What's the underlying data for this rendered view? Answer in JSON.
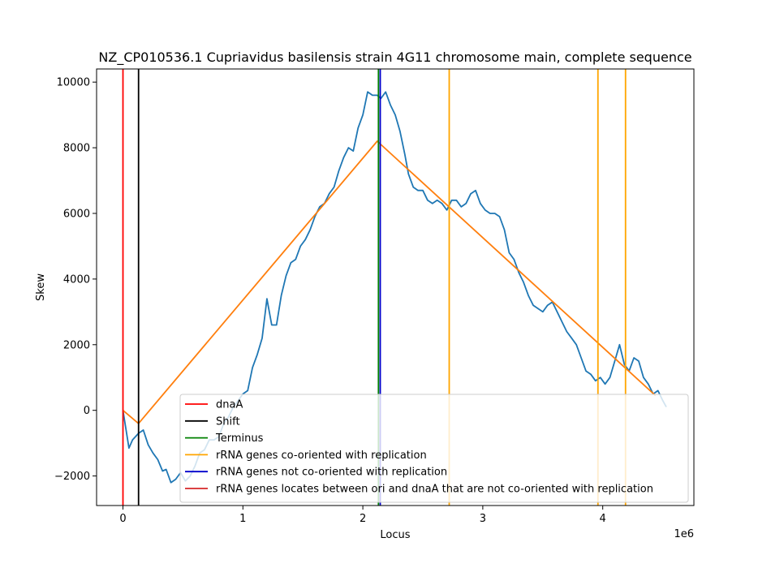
{
  "chart_data": {
    "type": "line",
    "title": "NZ_CP010536.1 Cupriavidus basilensis strain 4G11 chromosome main, complete sequence",
    "xlabel": "Locus",
    "ylabel": "Skew",
    "x_offset_label": "1e6",
    "xlim": [
      -220000,
      4760000
    ],
    "ylim": [
      -2900,
      10400
    ],
    "x_ticks": [
      0,
      1000000,
      2000000,
      3000000,
      4000000
    ],
    "x_tick_labels": [
      "0",
      "1",
      "2",
      "3",
      "4"
    ],
    "y_ticks": [
      -2000,
      0,
      2000,
      4000,
      6000,
      8000,
      10000
    ],
    "y_tick_labels": [
      "−2000",
      "0",
      "2000",
      "4000",
      "6000",
      "8000",
      "10000"
    ],
    "grid": false,
    "legend_position": "lower-right",
    "series": [
      {
        "name": "",
        "color": "#1f77b4",
        "x": [
          0,
          50000,
          80000,
          130000,
          170000,
          210000,
          250000,
          290000,
          330000,
          360000,
          400000,
          440000,
          480000,
          520000,
          560000,
          600000,
          640000,
          680000,
          720000,
          760000,
          800000,
          840000,
          880000,
          920000,
          960000,
          1000000,
          1040000,
          1080000,
          1120000,
          1160000,
          1200000,
          1240000,
          1280000,
          1320000,
          1360000,
          1400000,
          1440000,
          1480000,
          1520000,
          1560000,
          1600000,
          1640000,
          1680000,
          1720000,
          1760000,
          1800000,
          1840000,
          1880000,
          1920000,
          1960000,
          2000000,
          2040000,
          2080000,
          2120000,
          2150000,
          2190000,
          2230000,
          2270000,
          2310000,
          2350000,
          2380000,
          2420000,
          2460000,
          2500000,
          2540000,
          2580000,
          2620000,
          2660000,
          2700000,
          2740000,
          2780000,
          2820000,
          2860000,
          2900000,
          2940000,
          2980000,
          3020000,
          3060000,
          3100000,
          3140000,
          3180000,
          3220000,
          3260000,
          3300000,
          3340000,
          3380000,
          3420000,
          3460000,
          3500000,
          3540000,
          3580000,
          3620000,
          3660000,
          3700000,
          3740000,
          3780000,
          3820000,
          3860000,
          3900000,
          3940000,
          3980000,
          4020000,
          4060000,
          4100000,
          4140000,
          4180000,
          4220000,
          4260000,
          4300000,
          4340000,
          4380000,
          4420000,
          4460000,
          4500000,
          4530000
        ],
        "y": [
          0,
          -1150,
          -900,
          -700,
          -600,
          -1050,
          -1300,
          -1500,
          -1850,
          -1800,
          -2200,
          -2100,
          -1900,
          -2150,
          -2000,
          -1700,
          -1300,
          -1200,
          -900,
          -900,
          -800,
          -400,
          -200,
          100,
          300,
          500,
          600,
          1300,
          1700,
          2200,
          3400,
          2600,
          2600,
          3500,
          4100,
          4500,
          4600,
          5000,
          5200,
          5500,
          5900,
          6200,
          6300,
          6600,
          6800,
          7300,
          7700,
          8000,
          7900,
          8600,
          9000,
          9700,
          9600,
          9600,
          9500,
          9700,
          9300,
          9000,
          8500,
          7800,
          7200,
          6800,
          6700,
          6700,
          6400,
          6300,
          6400,
          6300,
          6100,
          6400,
          6400,
          6200,
          6300,
          6600,
          6700,
          6300,
          6100,
          6000,
          6000,
          5900,
          5500,
          4800,
          4600,
          4200,
          3900,
          3500,
          3200,
          3100,
          3000,
          3200,
          3300,
          3000,
          2700,
          2400,
          2200,
          2000,
          1600,
          1200,
          1100,
          900,
          1000,
          800,
          1000,
          1500,
          2000,
          1400,
          1200,
          1600,
          1500,
          1000,
          800,
          500,
          600,
          300,
          100
        ]
      },
      {
        "name": "",
        "color": "#ff7f0e",
        "x": [
          0,
          130000,
          2120000,
          4440000
        ],
        "y": [
          0,
          -400,
          8200,
          450
        ]
      }
    ],
    "vertical_lines": [
      {
        "x": 0,
        "color": "#ff0000",
        "group": "dnaA"
      },
      {
        "x": 130000,
        "color": "#000000",
        "group": "Shift"
      },
      {
        "x": 2130000,
        "color": "#008000",
        "group": "Terminus"
      },
      {
        "x": 2720000,
        "color": "#ffa500",
        "group": "rRNA co-oriented"
      },
      {
        "x": 3960000,
        "color": "#ffa500",
        "group": "rRNA co-oriented"
      },
      {
        "x": 4190000,
        "color": "#ffa500",
        "group": "rRNA co-oriented"
      },
      {
        "x": 2145000,
        "color": "#0000cc",
        "group": "rRNA not co-oriented"
      }
    ],
    "legend": [
      {
        "label": "dnaA",
        "color": "#ff0000"
      },
      {
        "label": "Shift",
        "color": "#000000"
      },
      {
        "label": "Terminus",
        "color": "#008000"
      },
      {
        "label": "rRNA genes co-oriented with replication",
        "color": "#ffa500"
      },
      {
        "label": "rRNA genes not co-oriented with replication",
        "color": "#0000cc"
      },
      {
        "label": "rRNA genes locates between ori and dnaA that are not co-oriented with replication",
        "color": "#d62728"
      }
    ]
  }
}
